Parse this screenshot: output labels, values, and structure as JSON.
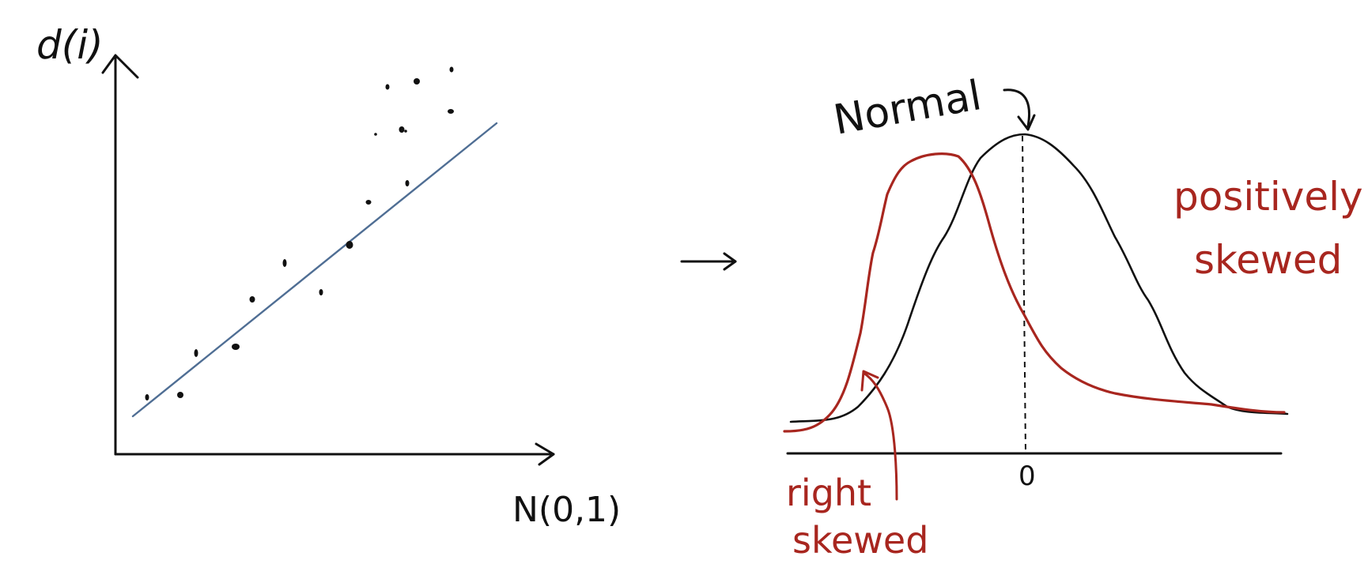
{
  "colors": {
    "ink": "#111111",
    "fit_line": "#4f6e94",
    "red": "#a8261f",
    "background": "#ffffff"
  },
  "qq_plot": {
    "y_label": "d(i)",
    "x_label": "N(0,1)",
    "points_count": 17
  },
  "arrow_between": {
    "icon": "right-arrow-icon"
  },
  "distribution_plot": {
    "normal_label": "Normal",
    "zero_tick_label": "0",
    "positive_label_line1": "positively",
    "positive_label_line2": "skewed",
    "right_label_line1": "right",
    "right_label_line2": "skewed"
  }
}
